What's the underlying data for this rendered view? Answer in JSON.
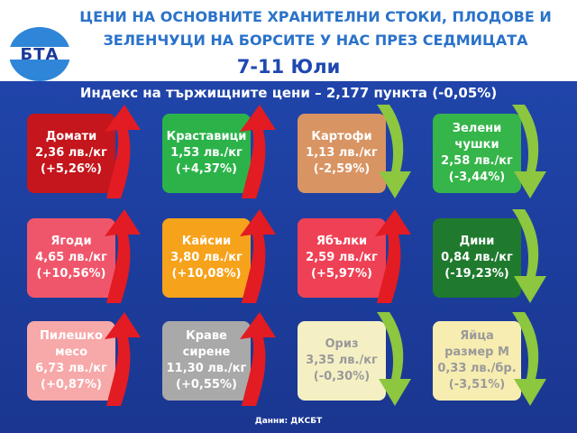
{
  "header": {
    "title_line1": "ЦЕНИ НА ОСНОВНИТЕ ХРАНИТЕЛНИ СТОКИ, ПЛОДОВЕ И",
    "title_line2": "ЗЕЛЕНЧУЦИ НА БОРСИТЕ У НАС ПРЕЗ СЕДМИЦАТА",
    "date": "7-11 Юли",
    "logo": "БТА"
  },
  "index_text": "Индекс на тържищните цени – 2,177 пункта (-0,05%)",
  "items": [
    {
      "name": "Домати",
      "price": "2,36 лв./кг",
      "change": "(+5,26%)",
      "direction": "up",
      "color": "#c4161c"
    },
    {
      "name": "Краставици",
      "price": "1,53 лв./кг",
      "change": "(+4,37%)",
      "direction": "up",
      "color": "#2bb34a"
    },
    {
      "name": "Картофи",
      "price": "1,13 лв./кг",
      "change": "(-2,59%)",
      "direction": "down",
      "color": "#d99463"
    },
    {
      "name": "Зелени чушки",
      "price": "2,58 лв./кг",
      "change": "(-3,44%)",
      "direction": "down",
      "color": "#35b54a"
    },
    {
      "name": "Ягоди",
      "price": "4,65 лв./кг",
      "change": "(+10,56%)",
      "direction": "up",
      "color": "#f0566b"
    },
    {
      "name": "Кайсии",
      "price": "3,80 лв./кг",
      "change": "(+10,08%)",
      "direction": "up",
      "color": "#f7a21b"
    },
    {
      "name": "Ябълки",
      "price": "2,59 лв./кг",
      "change": "(+5,97%)",
      "direction": "up",
      "color": "#ef4156"
    },
    {
      "name": "Дини",
      "price": "0,84 лв./кг",
      "change": "(-19,23%)",
      "direction": "down",
      "color": "#1f7a2e"
    },
    {
      "name": "Пилешко месо",
      "price": "6,73 лв./кг",
      "change": "(+0,87%)",
      "direction": "up",
      "color": "#f7a8a8"
    },
    {
      "name": "Краве сирене",
      "price": "11,30 лв./кг",
      "change": "(+0,55%)",
      "direction": "up",
      "color": "#a9a9a9"
    },
    {
      "name": "Ориз",
      "price": "3,35 лв./кг",
      "change": "(-0,30%)",
      "direction": "down",
      "color": "#f5f0c4"
    },
    {
      "name": "Яйца размер М",
      "price": "0,33 лв./бр.",
      "change": "(-3,51%)",
      "direction": "down",
      "color": "#f7edb0"
    }
  ],
  "footer": "Данни: ДКСБТ",
  "colors": {
    "up_arrow": "#e31b23",
    "down_arrow": "#8dc63f",
    "background": "#1f44a8"
  }
}
